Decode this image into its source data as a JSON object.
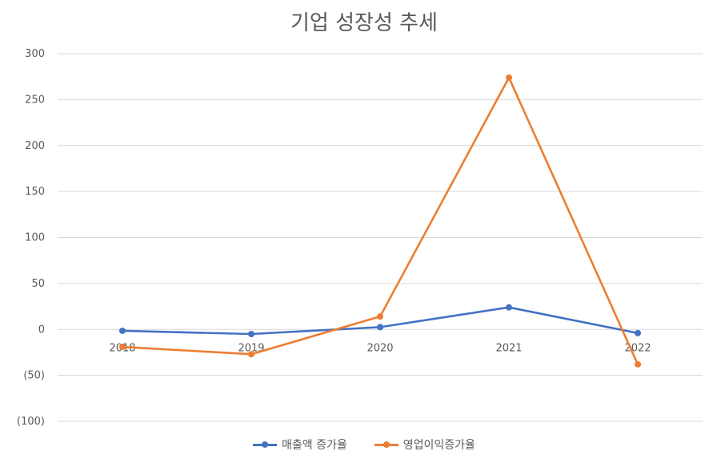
{
  "chart_data": {
    "type": "line",
    "title": "기업 성장성 추세",
    "categories": [
      "2018",
      "2019",
      "2020",
      "2021",
      "2022"
    ],
    "series": [
      {
        "name": "매출액 증가율",
        "color": "#4472C4",
        "values": [
          -1.5,
          -5,
          2.5,
          24,
          -4
        ]
      },
      {
        "name": "영업이익증가율",
        "color": "#ED7D31",
        "values": [
          -19,
          -27,
          14,
          274,
          -38
        ]
      }
    ],
    "ylim": [
      -100,
      300
    ],
    "yticks": [
      300,
      250,
      200,
      150,
      100,
      50,
      0,
      -50,
      -100
    ],
    "ytick_labels": [
      "300",
      "250",
      "200",
      "150",
      "100",
      "50",
      "0",
      "(50)",
      "(100)"
    ],
    "grid": true,
    "legend_position": "bottom"
  }
}
